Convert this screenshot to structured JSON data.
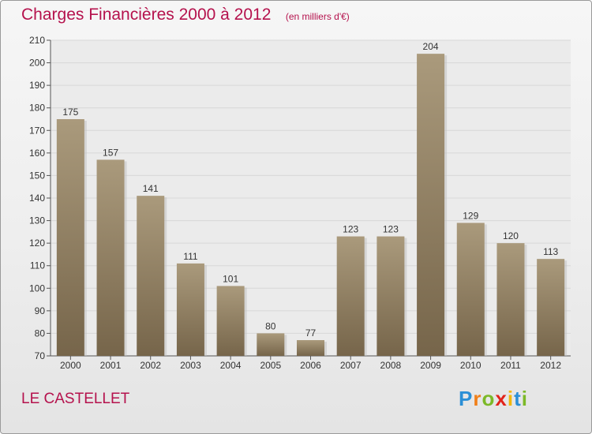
{
  "title": "Charges Financières 2000 à 2012",
  "subtitle": "(en milliers d'€)",
  "commune": "LE CASTELLET",
  "logo": {
    "letters": [
      "P",
      "r",
      "o",
      "x",
      "i",
      "t",
      "i"
    ],
    "colors": [
      "#2b8fd6",
      "#f07f18",
      "#7cb928",
      "#e2231a",
      "#f2b705",
      "#2b8fd6",
      "#7cb928"
    ]
  },
  "colors": {
    "title": "#b5124d",
    "bar_top": "#aa9a7c",
    "bar_bottom": "#76654a",
    "grid": "#d8d8d8"
  },
  "chart_data": {
    "type": "bar",
    "categories": [
      "2000",
      "2001",
      "2002",
      "2003",
      "2004",
      "2005",
      "2006",
      "2007",
      "2008",
      "2009",
      "2010",
      "2011",
      "2012"
    ],
    "values": [
      175,
      157,
      141,
      111,
      101,
      80,
      77,
      123,
      123,
      204,
      129,
      120,
      113
    ],
    "title": "Charges Financières 2000 à 2012",
    "subtitle": "(en milliers d'€)",
    "xlabel": "",
    "ylabel": "",
    "ylim": [
      70,
      210
    ],
    "yticks": [
      70,
      80,
      90,
      100,
      110,
      120,
      130,
      140,
      150,
      160,
      170,
      180,
      190,
      200,
      210
    ],
    "grid": true,
    "data_labels": true
  }
}
